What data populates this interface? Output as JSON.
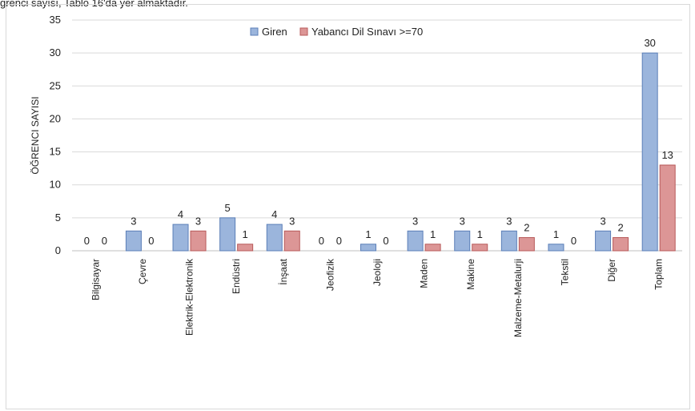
{
  "caption": "ğrenci sayısı, Tablo 16'da yer almaktadır.",
  "chart_data": {
    "type": "bar",
    "title": "",
    "xlabel": "",
    "ylabel": "ÖĞRENCI SAYISI",
    "ylim": [
      0,
      35
    ],
    "yticks": [
      0,
      5,
      10,
      15,
      20,
      25,
      30,
      35
    ],
    "grid": true,
    "legend_position": "top-center",
    "categories": [
      "Bilgisayar",
      "Çevre",
      "Elektrik-Elektronik",
      "Endüstri",
      "İnşaat",
      "Jeofizik",
      "Jeoloji",
      "Maden",
      "Makine",
      "Malzeme-Metalurji",
      "Tekstil",
      "Diğer",
      "Toplam"
    ],
    "series": [
      {
        "name": "Giren",
        "color": "#9bb5dc",
        "values": [
          0,
          3,
          4,
          5,
          4,
          0,
          1,
          3,
          3,
          3,
          1,
          3,
          30
        ]
      },
      {
        "name": "Yabancı Dil Sınavı >=70",
        "color": "#dc9696",
        "values": [
          0,
          0,
          3,
          1,
          3,
          0,
          0,
          1,
          1,
          2,
          0,
          2,
          13
        ]
      }
    ]
  }
}
